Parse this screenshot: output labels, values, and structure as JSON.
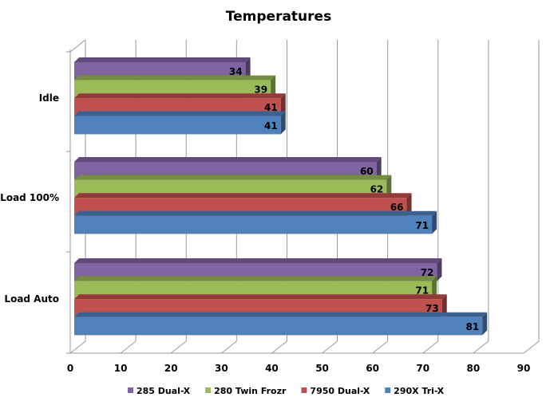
{
  "chart_data": {
    "type": "bar",
    "orientation": "horizontal",
    "title": "Temperatures",
    "categories": [
      "Idle",
      "Load 100%",
      "Load Auto"
    ],
    "series": [
      {
        "name": "285 Dual-X",
        "color": "#8064a2",
        "values": [
          34,
          60,
          72
        ]
      },
      {
        "name": "280 Twin Frozr",
        "color": "#9bbb59",
        "values": [
          39,
          62,
          71
        ]
      },
      {
        "name": "7950 Dual-X",
        "color": "#c0504d",
        "values": [
          41,
          66,
          73
        ]
      },
      {
        "name": "290X Tri-X",
        "color": "#4f81bd",
        "values": [
          41,
          71,
          81
        ]
      }
    ],
    "xlim": [
      0,
      90
    ],
    "xticks": [
      0,
      10,
      20,
      30,
      40,
      50,
      60,
      70,
      80,
      90
    ],
    "grid": true,
    "legend": "bottom"
  }
}
